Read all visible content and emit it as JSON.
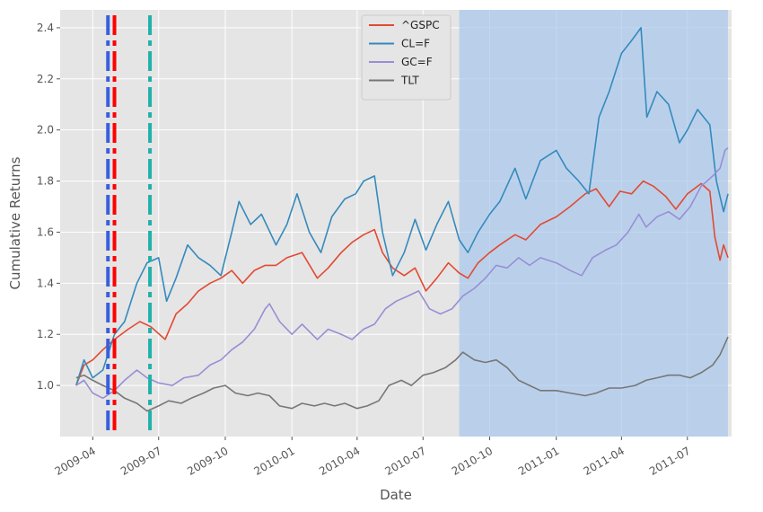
{
  "chart_data": {
    "type": "line",
    "xlabel": "Date",
    "ylabel": "Cumulative Returns",
    "x_range": [
      "2009-02-15",
      "2011-08-31"
    ],
    "ylim": [
      0.8,
      2.47
    ],
    "grid": true,
    "legend_placement": "top-center",
    "x_ticks": [
      {
        "date": "2009-04-01",
        "label": "2009-04"
      },
      {
        "date": "2009-07-01",
        "label": "2009-07"
      },
      {
        "date": "2009-10-01",
        "label": "2009-10"
      },
      {
        "date": "2010-01-01",
        "label": "2010-01"
      },
      {
        "date": "2010-04-01",
        "label": "2010-04"
      },
      {
        "date": "2010-07-01",
        "label": "2010-07"
      },
      {
        "date": "2010-10-01",
        "label": "2010-10"
      },
      {
        "date": "2011-01-01",
        "label": "2011-01"
      },
      {
        "date": "2011-04-01",
        "label": "2011-04"
      },
      {
        "date": "2011-07-01",
        "label": "2011-07"
      }
    ],
    "y_ticks": [
      {
        "value": 1.0,
        "label": "1.0"
      },
      {
        "value": 1.2,
        "label": "1.2"
      },
      {
        "value": 1.4,
        "label": "1.4"
      },
      {
        "value": 1.6,
        "label": "1.6"
      },
      {
        "value": 1.8,
        "label": "1.8"
      },
      {
        "value": 2.0,
        "label": "2.0"
      },
      {
        "value": 2.2,
        "label": "2.2"
      },
      {
        "value": 2.4,
        "label": "2.4"
      }
    ],
    "shaded_region": {
      "start": "2010-08-20",
      "end": "2011-08-26",
      "color": "#a8c8ec"
    },
    "vertical_lines": [
      {
        "date": "2009-04-22",
        "color": "#3a5fdc"
      },
      {
        "date": "2009-05-01",
        "color": "#ff0000"
      },
      {
        "date": "2009-06-19",
        "color": "#20b2aa"
      }
    ],
    "series": [
      {
        "name": "^GSPC",
        "color": "#e24a33",
        "points": [
          [
            "2009-03-09",
            1.0
          ],
          [
            "2009-03-20",
            1.08
          ],
          [
            "2009-04-01",
            1.1
          ],
          [
            "2009-04-15",
            1.14
          ],
          [
            "2009-05-01",
            1.18
          ],
          [
            "2009-05-20",
            1.22
          ],
          [
            "2009-06-05",
            1.25
          ],
          [
            "2009-06-20",
            1.23
          ],
          [
            "2009-07-10",
            1.18
          ],
          [
            "2009-07-25",
            1.28
          ],
          [
            "2009-08-10",
            1.32
          ],
          [
            "2009-08-25",
            1.37
          ],
          [
            "2009-09-10",
            1.4
          ],
          [
            "2009-09-25",
            1.42
          ],
          [
            "2009-10-10",
            1.45
          ],
          [
            "2009-10-25",
            1.4
          ],
          [
            "2009-11-10",
            1.45
          ],
          [
            "2009-11-25",
            1.47
          ],
          [
            "2009-12-10",
            1.47
          ],
          [
            "2009-12-25",
            1.5
          ],
          [
            "2010-01-15",
            1.52
          ],
          [
            "2010-02-05",
            1.42
          ],
          [
            "2010-02-20",
            1.46
          ],
          [
            "2010-03-10",
            1.52
          ],
          [
            "2010-03-25",
            1.56
          ],
          [
            "2010-04-10",
            1.59
          ],
          [
            "2010-04-25",
            1.61
          ],
          [
            "2010-05-06",
            1.52
          ],
          [
            "2010-05-20",
            1.46
          ],
          [
            "2010-06-05",
            1.43
          ],
          [
            "2010-06-20",
            1.46
          ],
          [
            "2010-07-05",
            1.37
          ],
          [
            "2010-07-20",
            1.42
          ],
          [
            "2010-08-05",
            1.48
          ],
          [
            "2010-08-20",
            1.44
          ],
          [
            "2010-09-01",
            1.42
          ],
          [
            "2010-09-15",
            1.48
          ],
          [
            "2010-10-01",
            1.52
          ],
          [
            "2010-10-15",
            1.55
          ],
          [
            "2010-11-05",
            1.59
          ],
          [
            "2010-11-20",
            1.57
          ],
          [
            "2010-12-10",
            1.63
          ],
          [
            "2011-01-01",
            1.66
          ],
          [
            "2011-01-20",
            1.7
          ],
          [
            "2011-02-10",
            1.75
          ],
          [
            "2011-02-25",
            1.77
          ],
          [
            "2011-03-15",
            1.7
          ],
          [
            "2011-03-30",
            1.76
          ],
          [
            "2011-04-15",
            1.75
          ],
          [
            "2011-05-01",
            1.8
          ],
          [
            "2011-05-15",
            1.78
          ],
          [
            "2011-06-01",
            1.74
          ],
          [
            "2011-06-15",
            1.69
          ],
          [
            "2011-07-01",
            1.75
          ],
          [
            "2011-07-20",
            1.79
          ],
          [
            "2011-08-01",
            1.76
          ],
          [
            "2011-08-08",
            1.58
          ],
          [
            "2011-08-15",
            1.49
          ],
          [
            "2011-08-20",
            1.55
          ],
          [
            "2011-08-26",
            1.5
          ]
        ]
      },
      {
        "name": "CL=F",
        "color": "#348abd",
        "points": [
          [
            "2009-03-09",
            1.0
          ],
          [
            "2009-03-20",
            1.1
          ],
          [
            "2009-04-01",
            1.03
          ],
          [
            "2009-04-15",
            1.06
          ],
          [
            "2009-05-01",
            1.2
          ],
          [
            "2009-05-15",
            1.25
          ],
          [
            "2009-06-01",
            1.4
          ],
          [
            "2009-06-15",
            1.48
          ],
          [
            "2009-07-01",
            1.5
          ],
          [
            "2009-07-12",
            1.33
          ],
          [
            "2009-07-25",
            1.42
          ],
          [
            "2009-08-10",
            1.55
          ],
          [
            "2009-08-25",
            1.5
          ],
          [
            "2009-09-10",
            1.47
          ],
          [
            "2009-09-25",
            1.43
          ],
          [
            "2009-10-10",
            1.6
          ],
          [
            "2009-10-20",
            1.72
          ],
          [
            "2009-11-05",
            1.63
          ],
          [
            "2009-11-20",
            1.67
          ],
          [
            "2009-12-10",
            1.55
          ],
          [
            "2009-12-25",
            1.63
          ],
          [
            "2010-01-08",
            1.75
          ],
          [
            "2010-01-25",
            1.6
          ],
          [
            "2010-02-10",
            1.52
          ],
          [
            "2010-02-25",
            1.66
          ],
          [
            "2010-03-15",
            1.73
          ],
          [
            "2010-03-30",
            1.75
          ],
          [
            "2010-04-10",
            1.8
          ],
          [
            "2010-04-25",
            1.82
          ],
          [
            "2010-05-06",
            1.6
          ],
          [
            "2010-05-20",
            1.43
          ],
          [
            "2010-06-05",
            1.52
          ],
          [
            "2010-06-20",
            1.65
          ],
          [
            "2010-07-05",
            1.53
          ],
          [
            "2010-07-20",
            1.63
          ],
          [
            "2010-08-05",
            1.72
          ],
          [
            "2010-08-20",
            1.57
          ],
          [
            "2010-09-01",
            1.52
          ],
          [
            "2010-09-15",
            1.6
          ],
          [
            "2010-10-01",
            1.67
          ],
          [
            "2010-10-15",
            1.72
          ],
          [
            "2010-11-05",
            1.85
          ],
          [
            "2010-11-20",
            1.73
          ],
          [
            "2010-12-10",
            1.88
          ],
          [
            "2011-01-01",
            1.92
          ],
          [
            "2011-01-15",
            1.85
          ],
          [
            "2011-02-01",
            1.8
          ],
          [
            "2011-02-15",
            1.75
          ],
          [
            "2011-03-01",
            2.05
          ],
          [
            "2011-03-15",
            2.15
          ],
          [
            "2011-04-01",
            2.3
          ],
          [
            "2011-04-15",
            2.35
          ],
          [
            "2011-04-28",
            2.4
          ],
          [
            "2011-05-06",
            2.05
          ],
          [
            "2011-05-20",
            2.15
          ],
          [
            "2011-06-05",
            2.1
          ],
          [
            "2011-06-20",
            1.95
          ],
          [
            "2011-07-01",
            2.0
          ],
          [
            "2011-07-15",
            2.08
          ],
          [
            "2011-08-01",
            2.02
          ],
          [
            "2011-08-10",
            1.8
          ],
          [
            "2011-08-20",
            1.68
          ],
          [
            "2011-08-26",
            1.75
          ]
        ]
      },
      {
        "name": "GC=F",
        "color": "#988ed5",
        "points": [
          [
            "2009-03-09",
            1.0
          ],
          [
            "2009-03-20",
            1.02
          ],
          [
            "2009-04-01",
            0.97
          ],
          [
            "2009-04-15",
            0.95
          ],
          [
            "2009-05-01",
            0.98
          ],
          [
            "2009-05-15",
            1.02
          ],
          [
            "2009-06-01",
            1.06
          ],
          [
            "2009-06-15",
            1.03
          ],
          [
            "2009-07-01",
            1.01
          ],
          [
            "2009-07-20",
            1.0
          ],
          [
            "2009-08-05",
            1.03
          ],
          [
            "2009-08-25",
            1.04
          ],
          [
            "2009-09-10",
            1.08
          ],
          [
            "2009-09-25",
            1.1
          ],
          [
            "2009-10-10",
            1.14
          ],
          [
            "2009-10-25",
            1.17
          ],
          [
            "2009-11-10",
            1.22
          ],
          [
            "2009-11-25",
            1.3
          ],
          [
            "2009-12-01",
            1.32
          ],
          [
            "2009-12-15",
            1.25
          ],
          [
            "2010-01-01",
            1.2
          ],
          [
            "2010-01-15",
            1.24
          ],
          [
            "2010-02-05",
            1.18
          ],
          [
            "2010-02-20",
            1.22
          ],
          [
            "2010-03-10",
            1.2
          ],
          [
            "2010-03-25",
            1.18
          ],
          [
            "2010-04-10",
            1.22
          ],
          [
            "2010-04-25",
            1.24
          ],
          [
            "2010-05-10",
            1.3
          ],
          [
            "2010-05-25",
            1.33
          ],
          [
            "2010-06-10",
            1.35
          ],
          [
            "2010-06-25",
            1.37
          ],
          [
            "2010-07-10",
            1.3
          ],
          [
            "2010-07-25",
            1.28
          ],
          [
            "2010-08-10",
            1.3
          ],
          [
            "2010-08-25",
            1.35
          ],
          [
            "2010-09-10",
            1.38
          ],
          [
            "2010-09-25",
            1.42
          ],
          [
            "2010-10-10",
            1.47
          ],
          [
            "2010-10-25",
            1.46
          ],
          [
            "2010-11-10",
            1.5
          ],
          [
            "2010-11-25",
            1.47
          ],
          [
            "2010-12-10",
            1.5
          ],
          [
            "2011-01-01",
            1.48
          ],
          [
            "2011-01-20",
            1.45
          ],
          [
            "2011-02-05",
            1.43
          ],
          [
            "2011-02-20",
            1.5
          ],
          [
            "2011-03-10",
            1.53
          ],
          [
            "2011-03-25",
            1.55
          ],
          [
            "2011-04-10",
            1.6
          ],
          [
            "2011-04-25",
            1.67
          ],
          [
            "2011-05-05",
            1.62
          ],
          [
            "2011-05-20",
            1.66
          ],
          [
            "2011-06-05",
            1.68
          ],
          [
            "2011-06-20",
            1.65
          ],
          [
            "2011-07-05",
            1.7
          ],
          [
            "2011-07-20",
            1.78
          ],
          [
            "2011-08-05",
            1.82
          ],
          [
            "2011-08-15",
            1.85
          ],
          [
            "2011-08-22",
            1.92
          ],
          [
            "2011-08-26",
            1.93
          ]
        ]
      },
      {
        "name": "TLT",
        "color": "#777777",
        "points": [
          [
            "2009-03-09",
            1.03
          ],
          [
            "2009-03-20",
            1.04
          ],
          [
            "2009-04-01",
            1.02
          ],
          [
            "2009-04-15",
            1.0
          ],
          [
            "2009-05-01",
            0.98
          ],
          [
            "2009-05-15",
            0.95
          ],
          [
            "2009-06-01",
            0.93
          ],
          [
            "2009-06-15",
            0.9
          ],
          [
            "2009-07-01",
            0.92
          ],
          [
            "2009-07-15",
            0.94
          ],
          [
            "2009-08-01",
            0.93
          ],
          [
            "2009-08-15",
            0.95
          ],
          [
            "2009-09-01",
            0.97
          ],
          [
            "2009-09-15",
            0.99
          ],
          [
            "2009-10-01",
            1.0
          ],
          [
            "2009-10-15",
            0.97
          ],
          [
            "2009-11-01",
            0.96
          ],
          [
            "2009-11-15",
            0.97
          ],
          [
            "2009-12-01",
            0.96
          ],
          [
            "2009-12-15",
            0.92
          ],
          [
            "2010-01-01",
            0.91
          ],
          [
            "2010-01-15",
            0.93
          ],
          [
            "2010-02-01",
            0.92
          ],
          [
            "2010-02-15",
            0.93
          ],
          [
            "2010-03-01",
            0.92
          ],
          [
            "2010-03-15",
            0.93
          ],
          [
            "2010-04-01",
            0.91
          ],
          [
            "2010-04-15",
            0.92
          ],
          [
            "2010-05-01",
            0.94
          ],
          [
            "2010-05-15",
            1.0
          ],
          [
            "2010-06-01",
            1.02
          ],
          [
            "2010-06-15",
            1.0
          ],
          [
            "2010-07-01",
            1.04
          ],
          [
            "2010-07-15",
            1.05
          ],
          [
            "2010-08-01",
            1.07
          ],
          [
            "2010-08-15",
            1.1
          ],
          [
            "2010-08-25",
            1.13
          ],
          [
            "2010-09-10",
            1.1
          ],
          [
            "2010-09-25",
            1.09
          ],
          [
            "2010-10-10",
            1.1
          ],
          [
            "2010-10-25",
            1.07
          ],
          [
            "2010-11-10",
            1.02
          ],
          [
            "2010-11-25",
            1.0
          ],
          [
            "2010-12-10",
            0.98
          ],
          [
            "2011-01-01",
            0.98
          ],
          [
            "2011-01-20",
            0.97
          ],
          [
            "2011-02-10",
            0.96
          ],
          [
            "2011-02-25",
            0.97
          ],
          [
            "2011-03-15",
            0.99
          ],
          [
            "2011-04-01",
            0.99
          ],
          [
            "2011-04-20",
            1.0
          ],
          [
            "2011-05-05",
            1.02
          ],
          [
            "2011-05-20",
            1.03
          ],
          [
            "2011-06-05",
            1.04
          ],
          [
            "2011-06-20",
            1.04
          ],
          [
            "2011-07-05",
            1.03
          ],
          [
            "2011-07-20",
            1.05
          ],
          [
            "2011-08-05",
            1.08
          ],
          [
            "2011-08-15",
            1.12
          ],
          [
            "2011-08-26",
            1.19
          ]
        ]
      }
    ]
  }
}
